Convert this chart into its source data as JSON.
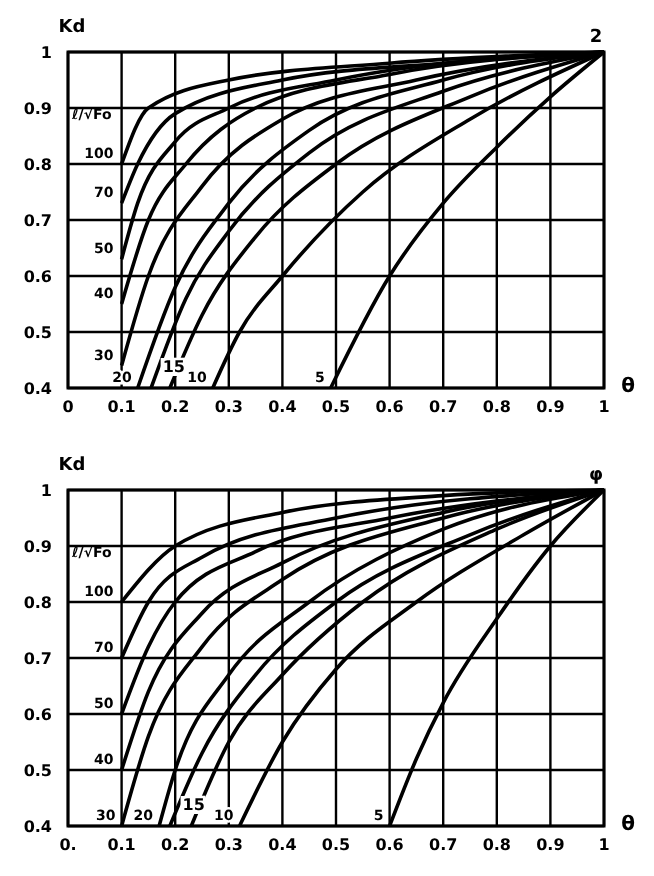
{
  "chart_data": [
    {
      "type": "line",
      "ylabel": "Kd",
      "xlabel": "θ",
      "legend_title": "ℓ/√Fo",
      "annotations": [
        "2"
      ],
      "xlim": [
        0,
        1
      ],
      "ylim": [
        0.4,
        1
      ],
      "xticks": [
        0,
        0.1,
        0.2,
        0.3,
        0.4,
        0.5,
        0.6,
        0.7,
        0.8,
        0.9,
        1
      ],
      "yticks": [
        0.4,
        0.5,
        0.6,
        0.7,
        0.8,
        0.9,
        1
      ],
      "grid": true,
      "legend": false,
      "marker": "none",
      "line_style": "solid",
      "series": [
        {
          "name": "100",
          "color": "#000000",
          "x": [
            0.1,
            0.15,
            0.3,
            0.6,
            1
          ],
          "values": [
            0.8,
            0.9,
            0.95,
            0.98,
            1
          ]
        },
        {
          "name": "70",
          "color": "#000000",
          "x": [
            0.1,
            0.13,
            0.2,
            0.4,
            0.7,
            1
          ],
          "values": [
            0.73,
            0.8,
            0.89,
            0.95,
            0.98,
            1
          ]
        },
        {
          "name": "50",
          "color": "#000000",
          "x": [
            0.1,
            0.13,
            0.2,
            0.3,
            0.5,
            1
          ],
          "values": [
            0.63,
            0.73,
            0.84,
            0.9,
            0.95,
            1
          ]
        },
        {
          "name": "40",
          "color": "#000000",
          "x": [
            0.1,
            0.15,
            0.22,
            0.35,
            0.6,
            1
          ],
          "values": [
            0.55,
            0.7,
            0.8,
            0.9,
            0.96,
            1
          ]
        },
        {
          "name": "30",
          "color": "#000000",
          "x": [
            0.1,
            0.15,
            0.25,
            0.4,
            0.65,
            1
          ],
          "values": [
            0.44,
            0.6,
            0.76,
            0.88,
            0.95,
            1
          ]
        },
        {
          "name": "20",
          "color": "#000000",
          "x": [
            0.13,
            0.2,
            0.3,
            0.45,
            0.7,
            1
          ],
          "values": [
            0.4,
            0.58,
            0.73,
            0.86,
            0.95,
            1
          ]
        },
        {
          "name": "15",
          "color": "#000000",
          "x": [
            0.155,
            0.22,
            0.3,
            0.45,
            0.7,
            1
          ],
          "values": [
            0.4,
            0.56,
            0.68,
            0.82,
            0.93,
            1
          ]
        },
        {
          "color": "#000000",
          "x": [
            0.19,
            0.25,
            0.35,
            0.5,
            0.75,
            1
          ],
          "values": [
            0.4,
            0.53,
            0.67,
            0.8,
            0.92,
            1
          ]
        },
        {
          "name": "10",
          "color": "#000000",
          "x": [
            0.27,
            0.32,
            0.4,
            0.55,
            0.75,
            1
          ],
          "values": [
            0.4,
            0.5,
            0.6,
            0.75,
            0.88,
            1
          ]
        },
        {
          "name": "5",
          "color": "#000000",
          "x": [
            0.49,
            0.6,
            0.7,
            0.8,
            0.9,
            1
          ],
          "values": [
            0.4,
            0.6,
            0.73,
            0.83,
            0.92,
            1
          ]
        }
      ]
    },
    {
      "type": "line",
      "ylabel": "Kd",
      "xlabel": "θ",
      "legend_title": "ℓ/√Fo",
      "annotations": [
        "φ"
      ],
      "xlim": [
        0,
        1
      ],
      "ylim": [
        0.4,
        1
      ],
      "xticks": [
        {
          "value": 0,
          "label": "0."
        },
        0.1,
        0.2,
        0.3,
        0.4,
        0.5,
        0.6,
        0.7,
        0.8,
        0.9,
        1
      ],
      "yticks": [
        0.4,
        0.5,
        0.6,
        0.7,
        0.8,
        0.9,
        1
      ],
      "grid": true,
      "legend": false,
      "marker": "none",
      "line_style": "solid",
      "series": [
        {
          "name": "100",
          "color": "#000000",
          "x": [
            0.1,
            0.2,
            0.4,
            0.7,
            1
          ],
          "values": [
            0.8,
            0.9,
            0.96,
            0.99,
            1
          ]
        },
        {
          "name": "70",
          "color": "#000000",
          "x": [
            0.1,
            0.15,
            0.25,
            0.5,
            1
          ],
          "values": [
            0.7,
            0.8,
            0.88,
            0.95,
            1
          ]
        },
        {
          "name": "50",
          "color": "#000000",
          "x": [
            0.1,
            0.15,
            0.2,
            0.35,
            0.6,
            1
          ],
          "values": [
            0.6,
            0.72,
            0.8,
            0.89,
            0.95,
            1
          ]
        },
        {
          "name": "40",
          "color": "#000000",
          "x": [
            0.1,
            0.15,
            0.25,
            0.4,
            0.7,
            1
          ],
          "values": [
            0.5,
            0.64,
            0.78,
            0.87,
            0.96,
            1
          ]
        },
        {
          "name": "30",
          "color": "#000000",
          "x": [
            0.1,
            0.15,
            0.25,
            0.4,
            0.7,
            1
          ],
          "values": [
            0.4,
            0.56,
            0.72,
            0.84,
            0.95,
            1
          ]
        },
        {
          "name": "20",
          "color": "#000000",
          "x": [
            0.17,
            0.2,
            0.3,
            0.45,
            0.7,
            1
          ],
          "values": [
            0.4,
            0.5,
            0.67,
            0.8,
            0.93,
            1
          ]
        },
        {
          "name": "15",
          "color": "#000000",
          "x": [
            0.19,
            0.25,
            0.35,
            0.5,
            0.75,
            1
          ],
          "values": [
            0.4,
            0.53,
            0.67,
            0.8,
            0.92,
            1
          ]
        },
        {
          "color": "#000000",
          "x": [
            0.23,
            0.3,
            0.4,
            0.55,
            0.8,
            1
          ],
          "values": [
            0.4,
            0.55,
            0.67,
            0.8,
            0.93,
            1
          ]
        },
        {
          "name": "10",
          "color": "#000000",
          "x": [
            0.32,
            0.4,
            0.5,
            0.65,
            0.85,
            1
          ],
          "values": [
            0.4,
            0.55,
            0.68,
            0.8,
            0.92,
            1
          ]
        },
        {
          "name": "5",
          "color": "#000000",
          "x": [
            0.6,
            0.65,
            0.7,
            0.8,
            0.9,
            1
          ],
          "values": [
            0.4,
            0.52,
            0.62,
            0.77,
            0.9,
            1
          ]
        }
      ]
    }
  ]
}
